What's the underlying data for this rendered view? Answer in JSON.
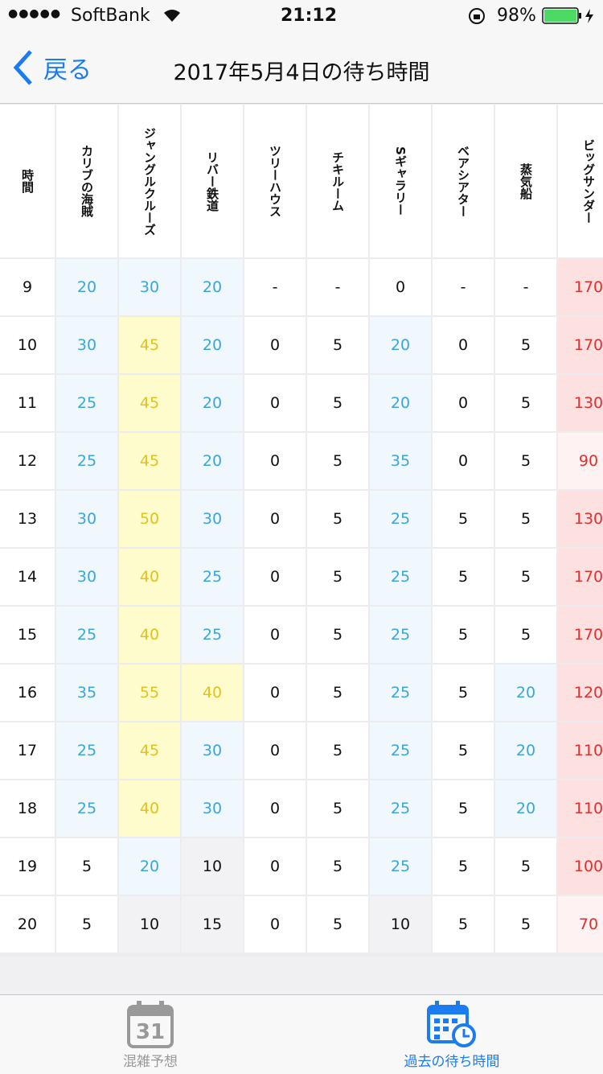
{
  "status_bar": {
    "carrier": "SoftBank",
    "time": "21:12",
    "battery": "98%"
  },
  "nav": {
    "back": "戻る",
    "title": "2017年5月4日の待ち時間"
  },
  "table": {
    "time_header": "時間",
    "headers": [
      "カリブの海賊",
      "ジャングルクルーズ",
      "リバー鉄道",
      "ツリーハウス",
      "チキルーム",
      "Sギャラリー",
      "ベアシアター",
      "蒸気船",
      "ビッグサンダー"
    ],
    "rows": [
      {
        "time": "9",
        "cells": [
          "20",
          "30",
          "20",
          "-",
          "-",
          "0",
          "-",
          "-",
          "170"
        ],
        "colors": [
          "#f0f7fd",
          "#f0f7fd",
          "#f0f7fd",
          "#ffffff",
          "#ffffff",
          "#ffffff",
          "#ffffff",
          "#ffffff",
          "#fde0e0"
        ]
      },
      {
        "time": "10",
        "cells": [
          "30",
          "45",
          "20",
          "0",
          "5",
          "20",
          "0",
          "5",
          "170"
        ],
        "colors": [
          "#f0f7fd",
          "#fefccc",
          "#f0f7fd",
          "#ffffff",
          "#ffffff",
          "#f0f7fd",
          "#ffffff",
          "#ffffff",
          "#fde0e0"
        ]
      },
      {
        "time": "11",
        "cells": [
          "25",
          "45",
          "20",
          "0",
          "5",
          "20",
          "0",
          "5",
          "130"
        ],
        "colors": [
          "#f0f7fd",
          "#fefccc",
          "#f0f7fd",
          "#ffffff",
          "#ffffff",
          "#f0f7fd",
          "#ffffff",
          "#ffffff",
          "#fde0e0"
        ]
      },
      {
        "time": "12",
        "cells": [
          "25",
          "45",
          "20",
          "0",
          "5",
          "35",
          "0",
          "5",
          "90"
        ],
        "colors": [
          "#f0f7fd",
          "#fefccc",
          "#f0f7fd",
          "#ffffff",
          "#ffffff",
          "#f0f7fd",
          "#ffffff",
          "#ffffff",
          "#fef2f2"
        ]
      },
      {
        "time": "13",
        "cells": [
          "30",
          "50",
          "30",
          "0",
          "5",
          "25",
          "5",
          "5",
          "130"
        ],
        "colors": [
          "#f0f7fd",
          "#fefccc",
          "#f0f7fd",
          "#ffffff",
          "#ffffff",
          "#f0f7fd",
          "#ffffff",
          "#ffffff",
          "#fde0e0"
        ]
      },
      {
        "time": "14",
        "cells": [
          "30",
          "40",
          "25",
          "0",
          "5",
          "25",
          "5",
          "5",
          "170"
        ],
        "colors": [
          "#f0f7fd",
          "#fefccc",
          "#f0f7fd",
          "#ffffff",
          "#ffffff",
          "#f0f7fd",
          "#ffffff",
          "#ffffff",
          "#fde0e0"
        ]
      },
      {
        "time": "15",
        "cells": [
          "25",
          "40",
          "25",
          "0",
          "5",
          "25",
          "5",
          "5",
          "170"
        ],
        "colors": [
          "#f0f7fd",
          "#fefccc",
          "#f0f7fd",
          "#ffffff",
          "#ffffff",
          "#f0f7fd",
          "#ffffff",
          "#ffffff",
          "#fde0e0"
        ]
      },
      {
        "time": "16",
        "cells": [
          "35",
          "55",
          "40",
          "0",
          "5",
          "25",
          "5",
          "20",
          "120"
        ],
        "colors": [
          "#f0f7fd",
          "#fefccc",
          "#fefccc",
          "#ffffff",
          "#ffffff",
          "#f0f7fd",
          "#ffffff",
          "#f0f7fd",
          "#fde0e0"
        ]
      },
      {
        "time": "17",
        "cells": [
          "25",
          "45",
          "30",
          "0",
          "5",
          "25",
          "5",
          "20",
          "110"
        ],
        "colors": [
          "#f0f7fd",
          "#fefccc",
          "#f0f7fd",
          "#ffffff",
          "#ffffff",
          "#f0f7fd",
          "#ffffff",
          "#f0f7fd",
          "#fde0e0"
        ]
      },
      {
        "time": "18",
        "cells": [
          "25",
          "40",
          "30",
          "0",
          "5",
          "25",
          "5",
          "20",
          "110"
        ],
        "colors": [
          "#f0f7fd",
          "#fefccc",
          "#f0f7fd",
          "#ffffff",
          "#ffffff",
          "#f0f7fd",
          "#ffffff",
          "#f0f7fd",
          "#fde0e0"
        ]
      },
      {
        "time": "19",
        "cells": [
          "5",
          "20",
          "10",
          "0",
          "5",
          "25",
          "5",
          "5",
          "100"
        ],
        "colors": [
          "#ffffff",
          "#f0f7fd",
          "#f2f2f4",
          "#ffffff",
          "#ffffff",
          "#f0f7fd",
          "#ffffff",
          "#ffffff",
          "#fde0e0"
        ]
      },
      {
        "time": "20",
        "cells": [
          "5",
          "10",
          "15",
          "0",
          "5",
          "10",
          "5",
          "5",
          "70"
        ],
        "colors": [
          "#ffffff",
          "#f2f2f4",
          "#f2f2f4",
          "#ffffff",
          "#ffffff",
          "#f2f2f4",
          "#ffffff",
          "#ffffff",
          "#fef2f2"
        ]
      }
    ]
  },
  "tab_bar": {
    "calendar_day": "31",
    "tabs": [
      "混雑予想",
      "過去の待ち時間"
    ]
  }
}
